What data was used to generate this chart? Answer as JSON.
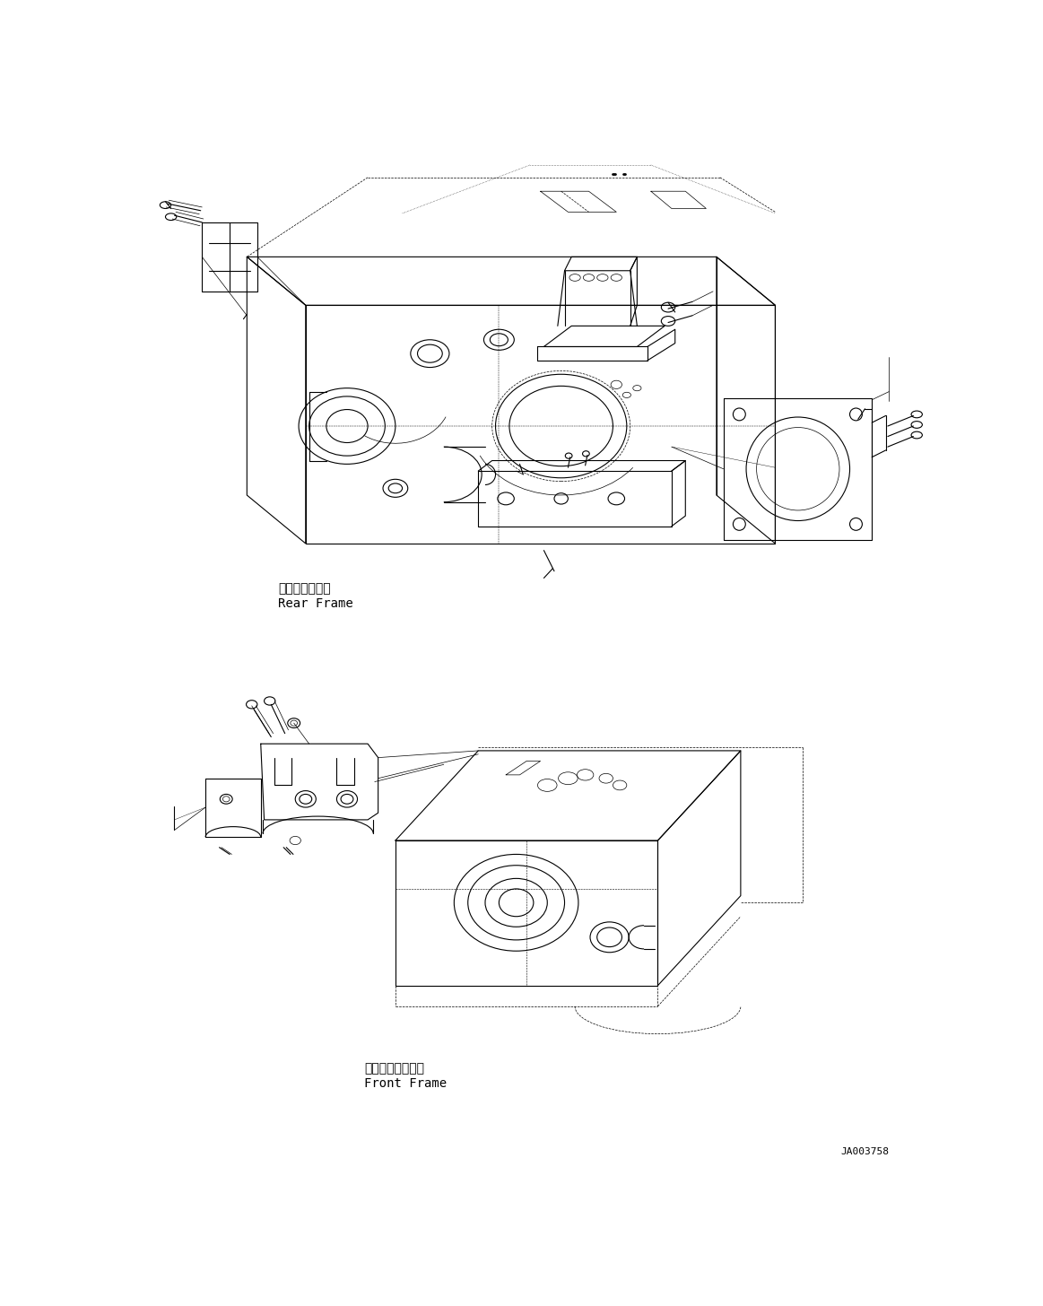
{
  "bg_color": "#ffffff",
  "line_color": "#000000",
  "fig_width": 11.63,
  "fig_height": 14.56,
  "dpi": 100,
  "watermark": "JA003758",
  "label_rear_jp": "リヤーフレーム",
  "label_rear_en": "Rear Frame",
  "label_front_jp": "フロントフレーム",
  "label_front_en": "Front Frame",
  "lw_main": 0.8,
  "lw_thin": 0.5,
  "lw_thick": 1.0
}
